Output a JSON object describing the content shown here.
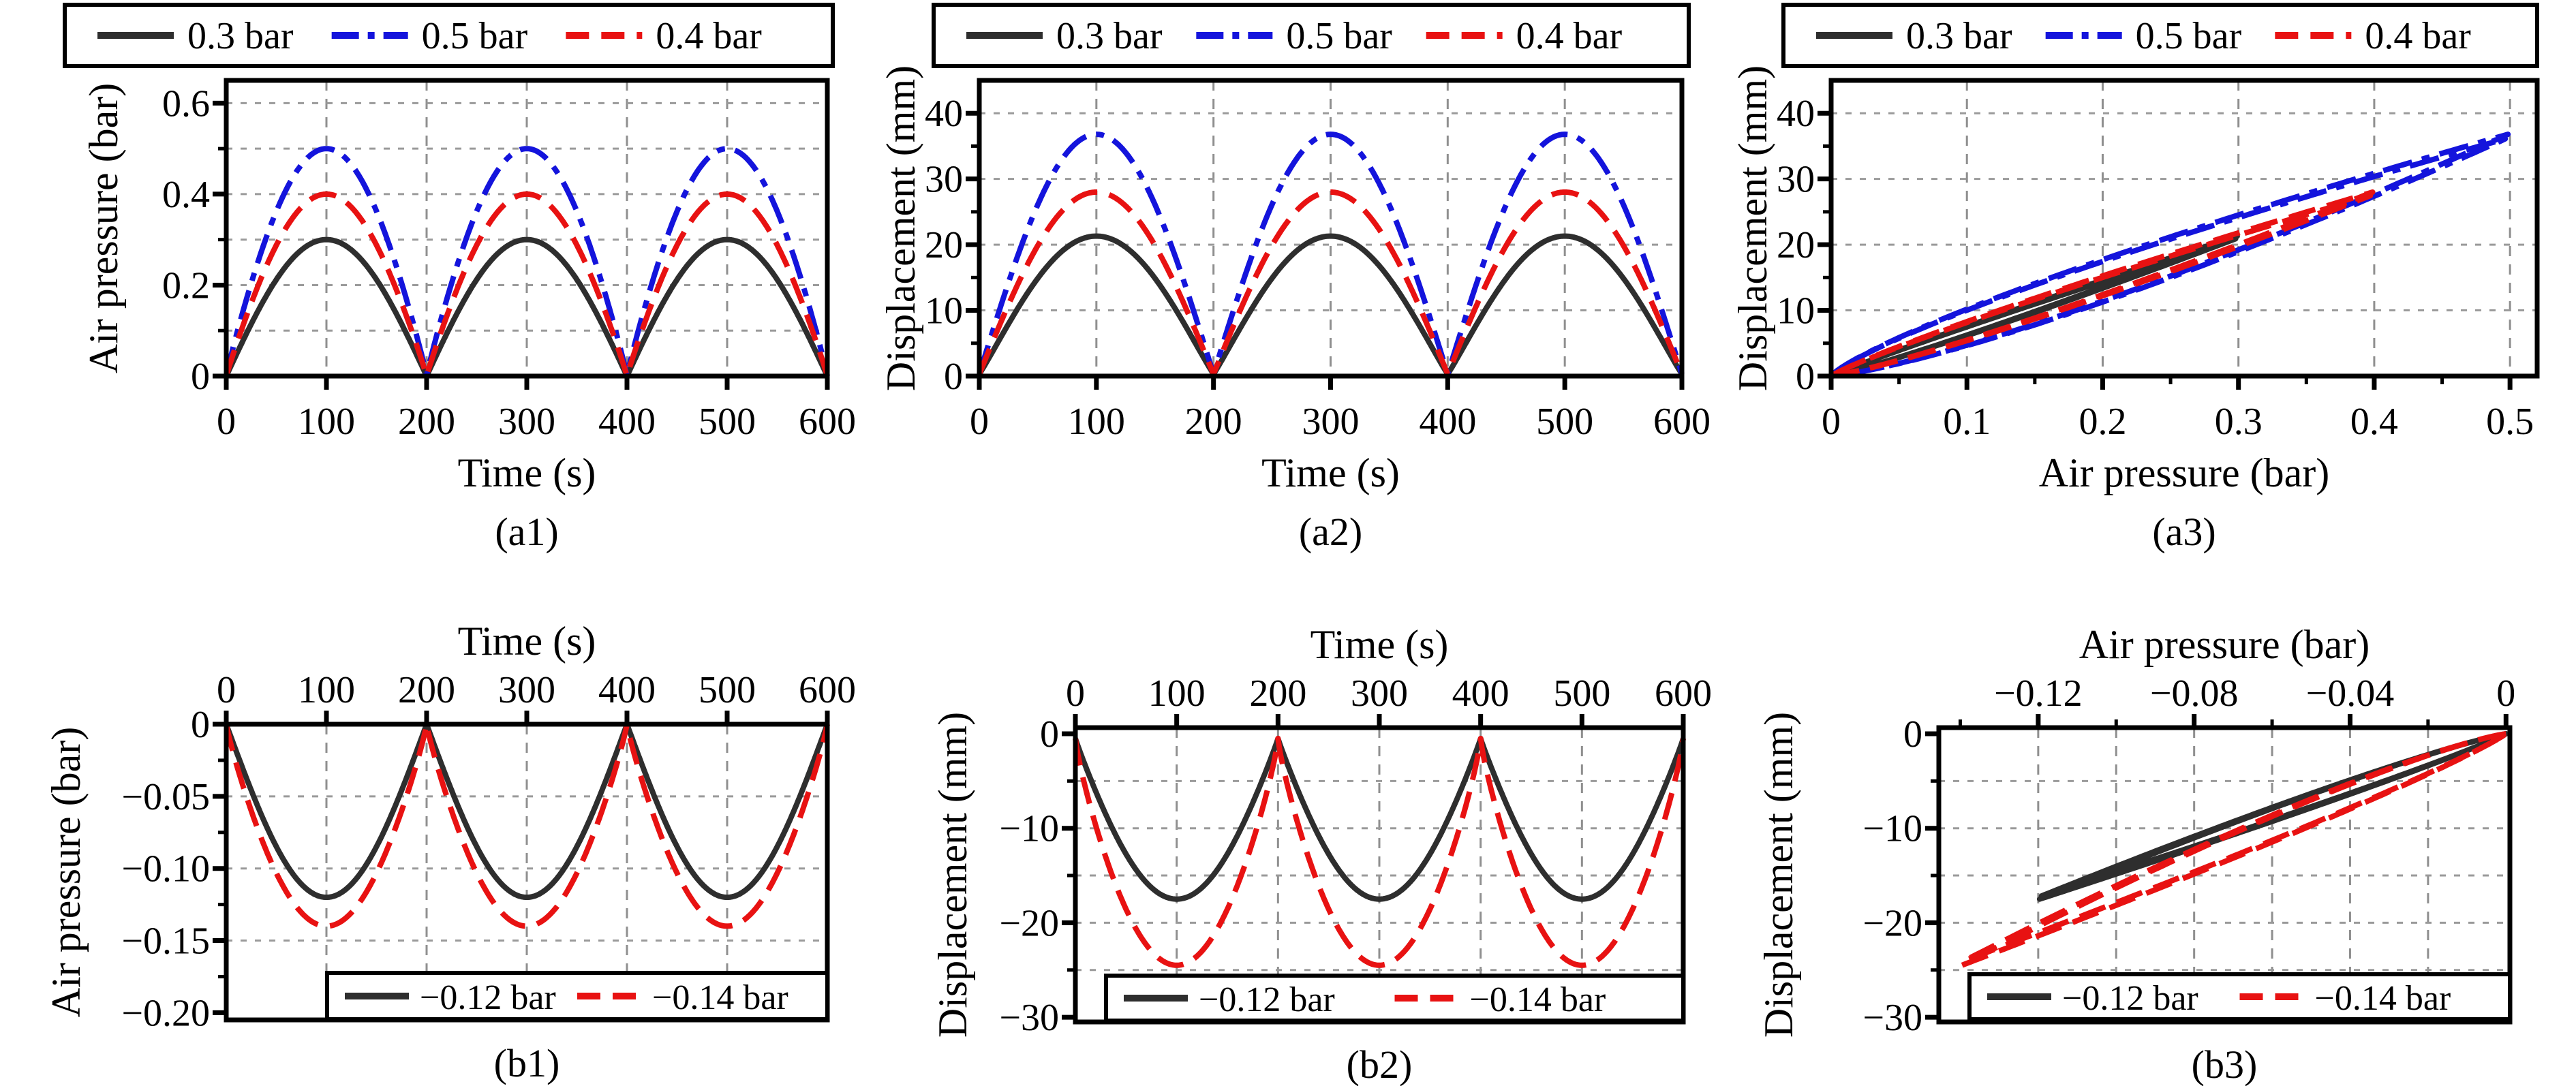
{
  "figure": {
    "background": "#ffffff"
  },
  "colors": {
    "frame": "#000000",
    "text": "#000000",
    "grid_dash": "#8f8f8f",
    "grid_dot": "#9a9a9a",
    "series_black": "#2e2e2e",
    "series_blue": "#1414dc",
    "series_red": "#e81212"
  },
  "chart_data": [
    {
      "id": "a1",
      "type": "line",
      "caption": "(a1)",
      "xlabel": "Time (s)",
      "ylabel": "Air pressure (bar)",
      "x_axis_side": "bottom",
      "xlim": [
        0,
        600
      ],
      "ylim_top": 0.65,
      "ylim_bottom": 0,
      "x_tick_values": [
        0,
        100,
        200,
        300,
        400,
        500,
        600
      ],
      "x_tick_labels": [
        "0",
        "100",
        "200",
        "300",
        "400",
        "500",
        "600"
      ],
      "x_minor": [],
      "y_tick_values": [
        0,
        0.2,
        0.4,
        0.6
      ],
      "y_tick_labels": [
        "0",
        "0.2",
        "0.4",
        "0.6"
      ],
      "y_minor": [
        0.1,
        0.3,
        0.5
      ],
      "grid_x": [
        100,
        200,
        300,
        400,
        500
      ],
      "grid_y": [
        0.1,
        0.2,
        0.3,
        0.4,
        0.5,
        0.6
      ],
      "legend": {
        "position": "top-outside",
        "entries": [
          {
            "label": "0.3 bar",
            "color": "black",
            "style": "solid"
          },
          {
            "label": "0.5 bar",
            "color": "blue",
            "style": "dashdot"
          },
          {
            "label": "0.4 bar",
            "color": "red",
            "style": "dashed"
          }
        ]
      },
      "series": [
        {
          "label": "0.3 bar",
          "color": "black",
          "style": "solid",
          "shape": "abs_sine",
          "sign": 1,
          "base": 0,
          "amp": 0.3,
          "period": 200,
          "exp": 1.0,
          "t_end": 600
        },
        {
          "label": "0.5 bar",
          "color": "blue",
          "style": "dashdot",
          "shape": "abs_sine",
          "sign": 1,
          "base": 0,
          "amp": 0.5,
          "period": 200,
          "exp": 0.93,
          "t_end": 600
        },
        {
          "label": "0.4 bar",
          "color": "red",
          "style": "dashed",
          "shape": "abs_sine",
          "sign": 1,
          "base": 0,
          "amp": 0.4,
          "period": 200,
          "exp": 0.95,
          "t_end": 600
        }
      ]
    },
    {
      "id": "a2",
      "type": "line",
      "caption": "(a2)",
      "xlabel": "Time (s)",
      "ylabel": "Displacement (mm)",
      "x_axis_side": "bottom",
      "xlim": [
        0,
        600
      ],
      "ylim_top": 45,
      "ylim_bottom": 0,
      "x_tick_values": [
        0,
        100,
        200,
        300,
        400,
        500,
        600
      ],
      "x_tick_labels": [
        "0",
        "100",
        "200",
        "300",
        "400",
        "500",
        "600"
      ],
      "x_minor": [],
      "y_tick_values": [
        0,
        10,
        20,
        30,
        40
      ],
      "y_tick_labels": [
        "0",
        "10",
        "20",
        "30",
        "40"
      ],
      "y_minor": [
        5,
        15,
        25,
        35
      ],
      "grid_x": [
        100,
        200,
        300,
        400,
        500
      ],
      "grid_y": [
        10,
        20,
        30,
        40
      ],
      "legend": {
        "position": "top-outside",
        "entries": [
          {
            "label": "0.3 bar",
            "color": "black",
            "style": "solid"
          },
          {
            "label": "0.5 bar",
            "color": "blue",
            "style": "dashdot"
          },
          {
            "label": "0.4 bar",
            "color": "red",
            "style": "dashed"
          }
        ]
      },
      "series": [
        {
          "label": "0.3 bar",
          "color": "black",
          "style": "solid",
          "shape": "abs_sine",
          "sign": 1,
          "base": 0.3,
          "amp": 21.0,
          "period": 200,
          "exp": 1.05,
          "t_end": 600
        },
        {
          "label": "0.5 bar",
          "color": "blue",
          "style": "dashdot",
          "shape": "abs_sine",
          "sign": 1,
          "base": 0.3,
          "amp": 36.5,
          "period": 200,
          "exp": 1.0,
          "t_end": 600
        },
        {
          "label": "0.4 bar",
          "color": "red",
          "style": "dashed",
          "shape": "abs_sine",
          "sign": 1,
          "base": 0.3,
          "amp": 27.7,
          "period": 200,
          "exp": 1.0,
          "t_end": 600
        }
      ]
    },
    {
      "id": "a3",
      "type": "line",
      "caption": "(a3)",
      "xlabel": "Air pressure (bar)",
      "ylabel": "Displacement (mm)",
      "x_axis_side": "bottom",
      "xlim": [
        0,
        0.52
      ],
      "ylim_top": 45,
      "ylim_bottom": 0,
      "x_tick_values": [
        0,
        0.1,
        0.2,
        0.3,
        0.4,
        0.5
      ],
      "x_tick_labels": [
        "0",
        "0.1",
        "0.2",
        "0.3",
        "0.4",
        "0.5"
      ],
      "x_minor": [
        0.05,
        0.15,
        0.25,
        0.35,
        0.45
      ],
      "y_tick_values": [
        0,
        10,
        20,
        30,
        40
      ],
      "y_tick_labels": [
        "0",
        "10",
        "20",
        "30",
        "40"
      ],
      "y_minor": [
        5,
        15,
        25,
        35
      ],
      "grid_x": [
        0.1,
        0.2,
        0.3,
        0.4,
        0.5
      ],
      "grid_y": [
        10,
        20,
        30,
        40
      ],
      "legend": {
        "position": "top-outside",
        "entries": [
          {
            "label": "0.3 bar",
            "color": "black",
            "style": "solid"
          },
          {
            "label": "0.5 bar",
            "color": "blue",
            "style": "dashdot"
          },
          {
            "label": "0.4 bar",
            "color": "red",
            "style": "dashed"
          }
        ]
      },
      "series": [
        {
          "label": "0.3 bar",
          "color": "black",
          "style": "solid",
          "shape": "hysteresis",
          "sign": 1,
          "p_end": 0.3,
          "d_end": 21.3,
          "load_exp": 1.12,
          "unload_exp": 0.94
        },
        {
          "label": "0.5 bar",
          "color": "blue",
          "style": "dashdot",
          "shape": "hysteresis",
          "sign": 1,
          "p_end": 0.5,
          "d_end": 36.8,
          "load_exp": 1.28,
          "unload_exp": 0.8
        },
        {
          "label": "0.4 bar",
          "color": "red",
          "style": "dashed",
          "shape": "hysteresis",
          "sign": 1,
          "p_end": 0.4,
          "d_end": 28.0,
          "load_exp": 1.18,
          "unload_exp": 0.88
        }
      ]
    },
    {
      "id": "b1",
      "type": "line",
      "caption": "(b1)",
      "xlabel": "Time (s)",
      "ylabel": "Air pressure (bar)",
      "x_axis_side": "top",
      "xlim": [
        0,
        600
      ],
      "ylim_top": 0,
      "ylim_bottom": -0.205,
      "x_tick_values": [
        0,
        100,
        200,
        300,
        400,
        500,
        600
      ],
      "x_tick_labels": [
        "0",
        "100",
        "200",
        "300",
        "400",
        "500",
        "600"
      ],
      "x_minor": [],
      "y_tick_values": [
        0,
        -0.05,
        -0.1,
        -0.15,
        -0.2
      ],
      "y_tick_labels": [
        "0",
        "−0.05",
        "−0.10",
        "−0.15",
        "−0.20"
      ],
      "y_minor": [
        -0.025,
        -0.075,
        -0.125,
        -0.175
      ],
      "grid_x": [
        100,
        200,
        300,
        400,
        500
      ],
      "grid_y": [
        -0.05,
        -0.1,
        -0.15
      ],
      "legend": {
        "position": "bottom-inside",
        "entries": [
          {
            "label": "−0.12 bar",
            "color": "black",
            "style": "solid"
          },
          {
            "label": "−0.14 bar",
            "color": "red",
            "style": "dashed"
          }
        ]
      },
      "series": [
        {
          "label": "−0.12 bar",
          "color": "black",
          "style": "solid",
          "shape": "abs_sine",
          "sign": -1,
          "base": 0,
          "amp": 0.12,
          "period": 200,
          "exp": 1.0,
          "t_end": 600
        },
        {
          "label": "−0.14 bar",
          "color": "red",
          "style": "dashed",
          "shape": "abs_sine",
          "sign": -1,
          "base": 0,
          "amp": 0.14,
          "period": 200,
          "exp": 0.88,
          "t_end": 600
        }
      ]
    },
    {
      "id": "b2",
      "type": "line",
      "caption": "(b2)",
      "xlabel": "Time (s)",
      "ylabel": "Displacement (mm)",
      "x_axis_side": "top",
      "xlim": [
        0,
        600
      ],
      "ylim_top": 0.65,
      "ylim_bottom": -30.5,
      "x_tick_values": [
        0,
        100,
        200,
        300,
        400,
        500,
        600
      ],
      "x_tick_labels": [
        "0",
        "100",
        "200",
        "300",
        "400",
        "500",
        "600"
      ],
      "x_minor": [],
      "y_tick_values": [
        0,
        -10,
        -20,
        -30
      ],
      "y_tick_labels": [
        "0",
        "−10",
        "−20",
        "−30"
      ],
      "y_minor": [
        -5,
        -15,
        -25
      ],
      "grid_x": [
        100,
        200,
        300,
        400,
        500
      ],
      "grid_y": [
        -5,
        -10,
        -15,
        -20,
        -25
      ],
      "legend": {
        "position": "bottom-inside",
        "entries": [
          {
            "label": "−0.12 bar",
            "color": "black",
            "style": "solid"
          },
          {
            "label": "−0.14 bar",
            "color": "red",
            "style": "dashed"
          }
        ]
      },
      "series": [
        {
          "label": "−0.12 bar",
          "color": "black",
          "style": "solid",
          "shape": "abs_sine",
          "sign": -1,
          "base": 0.5,
          "amp": 17.0,
          "period": 200,
          "exp": 0.95,
          "t_end": 600
        },
        {
          "label": "−0.14 bar",
          "color": "red",
          "style": "dashed",
          "shape": "abs_sine",
          "sign": -1,
          "base": 0.5,
          "amp": 24.0,
          "period": 200,
          "exp": 0.82,
          "t_end": 600
        }
      ]
    },
    {
      "id": "b3",
      "type": "line",
      "caption": "(b3)",
      "xlabel": "Air pressure (bar)",
      "ylabel": "Displacement (mm)",
      "x_axis_side": "top",
      "xlim": [
        -0.1455,
        0.001
      ],
      "ylim_top": 0.65,
      "ylim_bottom": -30.5,
      "x_tick_values": [
        -0.12,
        -0.08,
        -0.04,
        0
      ],
      "x_tick_labels": [
        "−0.12",
        "−0.08",
        "−0.04",
        "0"
      ],
      "x_minor": [
        -0.14,
        -0.1,
        -0.06,
        -0.02
      ],
      "y_tick_values": [
        0,
        -10,
        -20,
        -30
      ],
      "y_tick_labels": [
        "0",
        "−10",
        "−20",
        "−30"
      ],
      "y_minor": [
        -5,
        -15,
        -25
      ],
      "grid_x": [
        -0.12,
        -0.1,
        -0.08,
        -0.06,
        -0.04,
        -0.02
      ],
      "grid_y": [
        -5,
        -10,
        -15,
        -20,
        -25
      ],
      "legend": {
        "position": "bottom-inside",
        "entries": [
          {
            "label": "−0.12 bar",
            "color": "black",
            "style": "solid"
          },
          {
            "label": "−0.14 bar",
            "color": "red",
            "style": "dashed"
          }
        ]
      },
      "series": [
        {
          "label": "−0.12 bar",
          "color": "black",
          "style": "solid",
          "shape": "hysteresis",
          "sign": -1,
          "p_end": 0.12,
          "d_end": 17.5,
          "load_exp": 1.15,
          "unload_exp": 0.92
        },
        {
          "label": "−0.14 bar",
          "color": "red",
          "style": "dashed",
          "shape": "hysteresis",
          "sign": -1,
          "p_end": 0.14,
          "d_end": 24.5,
          "load_exp": 1.22,
          "unload_exp": 0.9
        }
      ]
    }
  ]
}
